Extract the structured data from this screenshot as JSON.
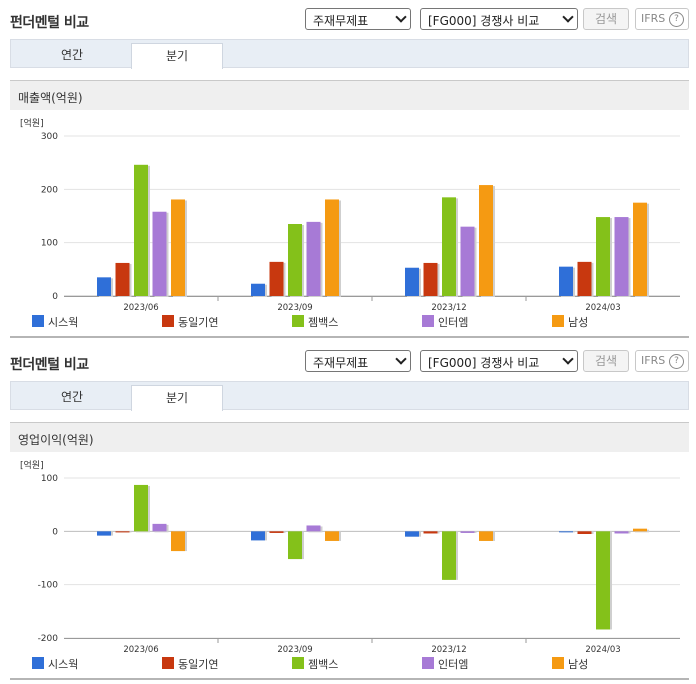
{
  "series_colors": [
    "#2f6fd8",
    "#c8380f",
    "#84c11a",
    "#a77ad6",
    "#f59a12"
  ],
  "legend": [
    "시스웍",
    "동일기연",
    "젬백스",
    "인터엠",
    "남성"
  ],
  "panels": [
    {
      "page_title": "펀더멘털 비교",
      "select_statement": "주재무제표",
      "select_group": "[FG000] 경쟁사 비교",
      "search_label": "검색",
      "ifrs_label": "IFRS",
      "ifrs_help": "?",
      "tab_annual": "연간",
      "tab_quarter": "분기",
      "section_title": "매출액(억원)",
      "unit_label": "[억원]",
      "tick_labels": [
        "300",
        "200",
        "100",
        "0"
      ]
    },
    {
      "page_title": "펀더멘털 비교",
      "select_statement": "주재무제표",
      "select_group": "[FG000] 경쟁사 비교",
      "search_label": "검색",
      "ifrs_label": "IFRS",
      "ifrs_help": "?",
      "tab_annual": "연간",
      "tab_quarter": "분기",
      "section_title": "영업이익(억원)",
      "unit_label": "[억원]",
      "tick_labels": [
        "100",
        "0",
        "-100",
        "-200"
      ]
    }
  ],
  "chart_data": [
    {
      "type": "bar",
      "title": "매출액(억원)",
      "ylabel": "[억원]",
      "categories": [
        "2023/06",
        "2023/09",
        "2023/12",
        "2024/03"
      ],
      "ylim": [
        0,
        300
      ],
      "yticks": [
        0,
        100,
        200,
        300
      ],
      "grid": true,
      "legend_position": "bottom",
      "series": [
        {
          "name": "시스웍",
          "values": [
            35,
            23,
            53,
            55
          ]
        },
        {
          "name": "동일기연",
          "values": [
            62,
            64,
            62,
            64
          ]
        },
        {
          "name": "젬백스",
          "values": [
            246,
            135,
            185,
            148
          ]
        },
        {
          "name": "인터엠",
          "values": [
            158,
            139,
            130,
            148
          ]
        },
        {
          "name": "남성",
          "values": [
            181,
            181,
            208,
            175
          ]
        }
      ]
    },
    {
      "type": "bar",
      "title": "영업이익(억원)",
      "ylabel": "[억원]",
      "categories": [
        "2023/06",
        "2023/09",
        "2023/12",
        "2024/03"
      ],
      "ylim": [
        -200,
        100
      ],
      "yticks": [
        -200,
        -100,
        0,
        100
      ],
      "grid": true,
      "legend_position": "bottom",
      "series": [
        {
          "name": "시스웍",
          "values": [
            -8,
            -17,
            -10,
            -1
          ]
        },
        {
          "name": "동일기연",
          "values": [
            -2,
            -3,
            -4,
            -5
          ]
        },
        {
          "name": "젬백스",
          "values": [
            87,
            -52,
            -91,
            -184
          ]
        },
        {
          "name": "인터엠",
          "values": [
            14,
            11,
            -3,
            -4
          ]
        },
        {
          "name": "남성",
          "values": [
            -37,
            -18,
            -18,
            5
          ]
        }
      ]
    }
  ]
}
